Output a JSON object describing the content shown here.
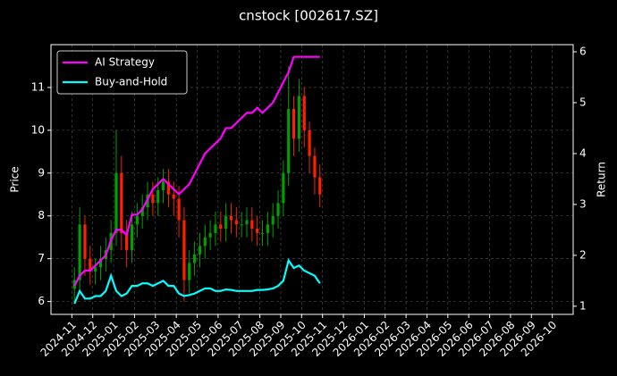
{
  "chart_data": {
    "type": "candlestick",
    "title": "cnstock [002617.SZ]",
    "ylabel": "Price",
    "y2label": "Return",
    "x": [
      "2024-11",
      "2024-11",
      "2024-11",
      "2024-11",
      "2024-12",
      "2024-12",
      "2024-12",
      "2024-12",
      "2025-01",
      "2025-01",
      "2025-01",
      "2025-01",
      "2025-02",
      "2025-02",
      "2025-02",
      "2025-02",
      "2025-03",
      "2025-03",
      "2025-03",
      "2025-03",
      "2025-04",
      "2025-04",
      "2025-04",
      "2025-04",
      "2025-05",
      "2025-05",
      "2025-05",
      "2025-05",
      "2025-06",
      "2025-06",
      "2025-06",
      "2025-06",
      "2025-07",
      "2025-07",
      "2025-07",
      "2025-07",
      "2025-08",
      "2025-08",
      "2025-08",
      "2025-08",
      "2025-09",
      "2025-09",
      "2025-09",
      "2025-09",
      "2025-10",
      "2025-10",
      "2025-10",
      "2025-10"
    ],
    "open": [
      6.3,
      6.5,
      7.8,
      7.0,
      6.7,
      6.8,
      7.0,
      7.2,
      7.6,
      9.0,
      7.6,
      7.2,
      7.8,
      8.0,
      8.2,
      8.5,
      8.3,
      8.6,
      8.8,
      8.5,
      8.4,
      7.9,
      6.5,
      6.9,
      7.1,
      7.3,
      7.5,
      7.6,
      7.8,
      7.7,
      8.0,
      7.9,
      7.8,
      7.8,
      7.9,
      7.7,
      7.6,
      7.6,
      7.8,
      8.0,
      8.3,
      9.0,
      10.5,
      9.8,
      10.8,
      10.0,
      9.4,
      8.9
    ],
    "high": [
      6.8,
      8.2,
      8.0,
      7.3,
      7.0,
      7.3,
      7.5,
      7.9,
      10.0,
      9.4,
      7.9,
      8.1,
      8.3,
      8.5,
      8.8,
      8.8,
      8.9,
      9.1,
      9.1,
      8.8,
      8.7,
      8.2,
      7.2,
      7.4,
      7.6,
      7.8,
      7.9,
      8.1,
      8.1,
      8.3,
      8.3,
      8.2,
      8.1,
      8.2,
      8.2,
      8.0,
      7.9,
      8.1,
      8.3,
      8.6,
      9.3,
      11.5,
      10.8,
      11.2,
      11.0,
      10.2,
      9.6,
      9.2
    ],
    "low": [
      6.0,
      6.2,
      6.6,
      6.4,
      6.4,
      6.5,
      6.7,
      6.9,
      7.3,
      7.2,
      6.8,
      6.9,
      7.5,
      7.7,
      7.9,
      8.0,
      8.0,
      8.3,
      8.2,
      8.0,
      7.5,
      6.0,
      6.2,
      6.6,
      6.8,
      7.0,
      7.2,
      7.3,
      7.4,
      7.4,
      7.6,
      7.5,
      7.5,
      7.5,
      7.4,
      7.3,
      7.3,
      7.3,
      7.5,
      7.7,
      8.0,
      8.7,
      9.4,
      9.5,
      9.6,
      9.0,
      8.5,
      8.2
    ],
    "close": [
      6.5,
      7.8,
      7.0,
      6.7,
      6.8,
      7.0,
      7.2,
      7.6,
      9.0,
      7.6,
      7.2,
      7.8,
      8.0,
      8.2,
      8.5,
      8.3,
      8.6,
      8.8,
      8.5,
      8.4,
      7.9,
      6.5,
      6.9,
      7.1,
      7.3,
      7.5,
      7.6,
      7.8,
      7.7,
      8.0,
      7.9,
      7.8,
      7.8,
      7.9,
      7.7,
      7.6,
      7.6,
      7.8,
      8.0,
      8.3,
      9.0,
      10.5,
      9.8,
      10.8,
      10.0,
      9.4,
      8.9,
      8.5
    ],
    "up_color": "#00a000",
    "down_color": "#ff2000",
    "series": [
      {
        "name": "AI Strategy",
        "color": "#ff00ff",
        "axis": "y2",
        "values": [
          1.4,
          1.6,
          1.7,
          1.7,
          1.8,
          1.9,
          2.0,
          2.3,
          2.5,
          2.5,
          2.4,
          2.8,
          2.8,
          2.9,
          3.1,
          3.3,
          3.4,
          3.5,
          3.4,
          3.3,
          3.2,
          3.3,
          3.4,
          3.6,
          3.8,
          4.0,
          4.1,
          4.2,
          4.3,
          4.5,
          4.5,
          4.6,
          4.7,
          4.8,
          4.8,
          4.9,
          4.8,
          4.9,
          5.0,
          5.2,
          5.4,
          5.6,
          5.9,
          5.9,
          5.9,
          5.9,
          5.9,
          5.9
        ]
      },
      {
        "name": "Buy-and-Hold",
        "color": "#00ffff",
        "axis": "y2",
        "values": [
          1.05,
          1.3,
          1.15,
          1.15,
          1.2,
          1.2,
          1.3,
          1.6,
          1.3,
          1.2,
          1.25,
          1.4,
          1.4,
          1.45,
          1.45,
          1.4,
          1.45,
          1.5,
          1.4,
          1.4,
          1.25,
          1.2,
          1.22,
          1.25,
          1.3,
          1.35,
          1.35,
          1.3,
          1.3,
          1.33,
          1.32,
          1.3,
          1.3,
          1.3,
          1.3,
          1.32,
          1.32,
          1.33,
          1.35,
          1.4,
          1.5,
          1.9,
          1.75,
          1.8,
          1.7,
          1.65,
          1.6,
          1.45
        ]
      }
    ],
    "xlim": [
      "2024-10",
      "2026-11"
    ],
    "xticks": [
      "2024-11",
      "2024-12",
      "2025-01",
      "2025-02",
      "2025-03",
      "2025-04",
      "2025-05",
      "2025-06",
      "2025-07",
      "2025-08",
      "2025-09",
      "2025-10",
      "2025-11",
      "2025-12",
      "2026-01",
      "2026-02",
      "2026-03",
      "2026-04",
      "2026-05",
      "2026-06",
      "2026-07",
      "2026-08",
      "2026-09",
      "2026-10"
    ],
    "ylim": [
      5.7,
      12.0
    ],
    "yticks": [
      6,
      7,
      8,
      9,
      10,
      11
    ],
    "y2lim": [
      0.84,
      6.14
    ],
    "y2ticks": [
      1,
      2,
      3,
      4,
      5,
      6
    ],
    "grid": true,
    "legend": "upper left"
  }
}
